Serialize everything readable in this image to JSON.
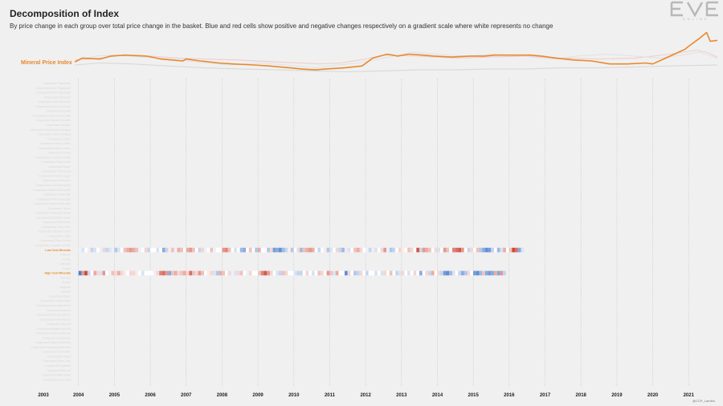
{
  "header": {
    "title": "Decomposition of Index",
    "subtitle": "By price change in each group over total price change in the basket. Blue and red cells show positive and negative changes respectively on a gradient scale where white represents no change"
  },
  "logo": {
    "wordmark": "EVE",
    "tagline": "ONLINE",
    "icon": "eve-online-logo"
  },
  "credit": "@CCP_Larrikin",
  "colors": {
    "background": "#f0f0f0",
    "index_line": "#e8892c",
    "positive": "#3a72c8",
    "negative": "#c8301e",
    "neutral": "#ffffff",
    "grid": "#c4c4c4"
  },
  "chart_data": {
    "type": "heatmap",
    "title": "Decomposition of Index",
    "index_series": {
      "name": "Mineral Price Index",
      "points": [
        [
          2003.9,
          100
        ],
        [
          2004.1,
          104
        ],
        [
          2004.6,
          103
        ],
        [
          2004.9,
          106
        ],
        [
          2005.3,
          107
        ],
        [
          2005.9,
          106
        ],
        [
          2006.3,
          103
        ],
        [
          2006.9,
          101
        ],
        [
          2007.0,
          103
        ],
        [
          2007.4,
          101
        ],
        [
          2007.9,
          99
        ],
        [
          2008.3,
          98
        ],
        [
          2008.9,
          97
        ],
        [
          2009.3,
          96
        ],
        [
          2009.9,
          94
        ],
        [
          2010.2,
          93
        ],
        [
          2010.6,
          92
        ],
        [
          2010.9,
          93
        ],
        [
          2011.4,
          94
        ],
        [
          2011.9,
          96
        ],
        [
          2012.2,
          104
        ],
        [
          2012.6,
          108
        ],
        [
          2012.9,
          106
        ],
        [
          2013.2,
          108
        ],
        [
          2013.6,
          107
        ],
        [
          2013.9,
          106
        ],
        [
          2014.4,
          105
        ],
        [
          2014.9,
          106
        ],
        [
          2015.3,
          106
        ],
        [
          2015.6,
          107
        ],
        [
          2015.9,
          107
        ],
        [
          2016.3,
          107
        ],
        [
          2016.6,
          107
        ],
        [
          2016.9,
          106
        ],
        [
          2017.3,
          104
        ],
        [
          2017.8,
          102
        ],
        [
          2018.3,
          101
        ],
        [
          2018.8,
          98
        ],
        [
          2019.3,
          98
        ],
        [
          2019.8,
          99
        ],
        [
          2020.0,
          98
        ],
        [
          2020.3,
          103
        ],
        [
          2020.6,
          108
        ],
        [
          2020.9,
          113
        ],
        [
          2021.0,
          116
        ],
        [
          2021.3,
          124
        ],
        [
          2021.5,
          130
        ],
        [
          2021.6,
          121
        ],
        [
          2021.8,
          122
        ]
      ]
    },
    "context_series": [
      {
        "color": "#d8d8d8",
        "points": [
          [
            2003.9,
            97
          ],
          [
            2004.6,
            99
          ],
          [
            2005.5,
            98
          ],
          [
            2006.5,
            96
          ],
          [
            2007.5,
            94
          ],
          [
            2008.5,
            93
          ],
          [
            2009.5,
            92
          ],
          [
            2010.5,
            91
          ],
          [
            2011.5,
            90
          ],
          [
            2012.5,
            91
          ],
          [
            2013.5,
            92
          ],
          [
            2014.5,
            92
          ],
          [
            2015.5,
            93
          ],
          [
            2016.5,
            93
          ],
          [
            2017.5,
            94
          ],
          [
            2018.5,
            94
          ],
          [
            2019.5,
            95
          ],
          [
            2020.5,
            96
          ],
          [
            2021.8,
            97
          ]
        ]
      },
      {
        "color": "#f2cccc",
        "points": [
          [
            2003.9,
            102
          ],
          [
            2004.6,
            104
          ],
          [
            2005.2,
            107
          ],
          [
            2006.0,
            106
          ],
          [
            2006.8,
            104
          ],
          [
            2007.5,
            103
          ],
          [
            2008.5,
            102
          ],
          [
            2009.5,
            100
          ],
          [
            2010.2,
            99
          ],
          [
            2010.7,
            98
          ],
          [
            2011.3,
            99
          ],
          [
            2012.0,
            103
          ],
          [
            2012.5,
            107
          ],
          [
            2013.5,
            106
          ],
          [
            2014.5,
            104
          ],
          [
            2015.5,
            105
          ],
          [
            2016.5,
            106
          ],
          [
            2017.5,
            104
          ],
          [
            2018.5,
            103
          ],
          [
            2019.5,
            104
          ],
          [
            2020.5,
            108
          ],
          [
            2021.2,
            112
          ],
          [
            2021.5,
            110
          ],
          [
            2021.8,
            105
          ]
        ]
      },
      {
        "color": "#e2e2e2",
        "points": [
          [
            2003.9,
            101
          ],
          [
            2004.5,
            106
          ],
          [
            2005.0,
            107
          ],
          [
            2005.8,
            105
          ],
          [
            2006.6,
            103
          ],
          [
            2007.3,
            100
          ],
          [
            2008.2,
            97
          ],
          [
            2009.0,
            99
          ],
          [
            2009.8,
            97
          ],
          [
            2010.6,
            94
          ],
          [
            2011.0,
            96
          ],
          [
            2011.8,
            99
          ],
          [
            2012.5,
            104
          ],
          [
            2013.3,
            110
          ],
          [
            2014.0,
            108
          ],
          [
            2014.8,
            106
          ],
          [
            2015.6,
            108
          ],
          [
            2016.4,
            106
          ],
          [
            2017.2,
            103
          ],
          [
            2017.9,
            106
          ],
          [
            2018.7,
            108
          ],
          [
            2019.5,
            106
          ],
          [
            2020.2,
            104
          ],
          [
            2020.8,
            107
          ],
          [
            2021.3,
            110
          ],
          [
            2021.8,
            104
          ]
        ]
      }
    ],
    "rows": [
      {
        "name": "Compressed Plagioclase",
        "highlight": false
      },
      {
        "name": "Compressed Azure Plagioclase",
        "highlight": false
      },
      {
        "name": "Compressed Rich Plagioclase",
        "highlight": false
      },
      {
        "name": "Compressed Pyroxeres",
        "highlight": false
      },
      {
        "name": "Compressed Solid Pyroxeres",
        "highlight": false
      },
      {
        "name": "Compressed Viscous Pyroxeres",
        "highlight": false
      },
      {
        "name": "Compressed Scordite",
        "highlight": false
      },
      {
        "name": "Compressed Condensed Scordite",
        "highlight": false
      },
      {
        "name": "Compressed Massive Scordite",
        "highlight": false
      },
      {
        "name": "Compressed Veldspar",
        "highlight": false
      },
      {
        "name": "Compressed Concentrated Veldspar",
        "highlight": false
      },
      {
        "name": "Compressed Dense Veldspar",
        "highlight": false
      },
      {
        "name": "Compressed Omber",
        "highlight": false
      },
      {
        "name": "Compressed Silvery Omber",
        "highlight": false
      },
      {
        "name": "Compressed Golden Omber",
        "highlight": false
      },
      {
        "name": "Compressed Kernite",
        "highlight": false
      },
      {
        "name": "Compressed Luminous Kernite",
        "highlight": false
      },
      {
        "name": "Compressed Fiery Kernite",
        "highlight": false
      },
      {
        "name": "Compressed Jaspet",
        "highlight": false
      },
      {
        "name": "Compressed Pure Jaspet",
        "highlight": false
      },
      {
        "name": "Compressed Pristine Jaspet",
        "highlight": false
      },
      {
        "name": "Compressed Hemorphite",
        "highlight": false
      },
      {
        "name": "Compressed Vivid Hemorphite",
        "highlight": false
      },
      {
        "name": "Compressed Radiant Hemorphite",
        "highlight": false
      },
      {
        "name": "Compressed Hedbergite",
        "highlight": false
      },
      {
        "name": "Compressed Vitric Hedbergite",
        "highlight": false
      },
      {
        "name": "Compressed Glazed Hedbergite",
        "highlight": false
      },
      {
        "name": "Compressed Gneiss",
        "highlight": false
      },
      {
        "name": "Compressed Iridescent Gneiss",
        "highlight": false
      },
      {
        "name": "Compressed Prismatic Gneiss",
        "highlight": false
      },
      {
        "name": "Compressed Dark Ochre",
        "highlight": false
      },
      {
        "name": "Compressed Onyx Ochre",
        "highlight": false
      },
      {
        "name": "Compressed Obsidian Ochre",
        "highlight": false
      },
      {
        "name": "Compressed Crokite",
        "highlight": false
      },
      {
        "name": "Compressed Sharp Crokite",
        "highlight": false
      },
      {
        "name": "Compressed Crystalline Crokite",
        "highlight": false
      },
      {
        "name": "Low Cost Minerals",
        "highlight": true
      },
      {
        "name": "Tritanium",
        "highlight": false
      },
      {
        "name": "Pyerite",
        "highlight": false
      },
      {
        "name": "Mexallon",
        "highlight": false
      },
      {
        "name": "Isogen",
        "highlight": false
      },
      {
        "name": "High Cost Minerals",
        "highlight": true
      },
      {
        "name": "Nocxium",
        "highlight": false
      },
      {
        "name": "Zydrine",
        "highlight": false
      },
      {
        "name": "Megacyte",
        "highlight": false
      },
      {
        "name": "Morphite",
        "highlight": false
      },
      {
        "name": "Compressed Bistot",
        "highlight": false
      },
      {
        "name": "Compressed Triclinic Bistot",
        "highlight": false
      },
      {
        "name": "Compressed Monoclinic Bistot",
        "highlight": false
      },
      {
        "name": "Compressed Arkonor",
        "highlight": false
      },
      {
        "name": "Compressed Crimson Arkonor",
        "highlight": false
      },
      {
        "name": "Compressed Prime Arkonor",
        "highlight": false
      },
      {
        "name": "Compressed Mercoxit",
        "highlight": false
      },
      {
        "name": "Compressed Magma Mercoxit",
        "highlight": false
      },
      {
        "name": "Compressed Vitreous Mercoxit",
        "highlight": false
      },
      {
        "name": "Compressed Spodumain",
        "highlight": false
      },
      {
        "name": "Compressed Bright Spodumain",
        "highlight": false
      },
      {
        "name": "Compressed Gleaming Spodumain",
        "highlight": false
      },
      {
        "name": "Compressed Dark Glitter",
        "highlight": false
      },
      {
        "name": "Compressed Gelidus",
        "highlight": false
      },
      {
        "name": "Compressed Glare Crust",
        "highlight": false
      },
      {
        "name": "Compressed Krystallos",
        "highlight": false
      },
      {
        "name": "Compressed Blue Ice",
        "highlight": false
      },
      {
        "name": "Compressed White Glaze",
        "highlight": false
      },
      {
        "name": "Compressed Clear Icicle",
        "highlight": false
      }
    ],
    "heat_rows": {
      "Low Cost Minerals": {
        "start": 2004.0,
        "step": 0.0833,
        "values": [
          0.1,
          0.2,
          0,
          -0.1,
          0.3,
          0.2,
          0,
          0.1,
          -0.2,
          0.3,
          0.2,
          0.1,
          0.4,
          0.2,
          0,
          -0.3,
          -0.4,
          -0.5,
          -0.4,
          -0.3,
          0.1,
          0,
          -0.2,
          0.3,
          0,
          0,
          0.2,
          0,
          0.6,
          0.3,
          -0.1,
          -0.3,
          0.1,
          -0.4,
          -0.3,
          0,
          -0.4,
          -0.5,
          -0.3,
          0,
          0.3,
          -0.2,
          0.1,
          0,
          -0.3,
          0.1,
          0,
          0,
          -0.5,
          -0.6,
          -0.3,
          0,
          0.2,
          0,
          0.5,
          0.6,
          0,
          -0.3,
          0,
          0.4,
          -0.4,
          0,
          0,
          0.4,
          -0.2,
          0.7,
          0.6,
          0.8,
          0.5,
          0.3,
          -0.1,
          0.4,
          0,
          -0.2,
          0.5,
          -0.3,
          -0.4,
          -0.5,
          -0.4,
          0,
          0.3,
          0,
          -0.1,
          0.4,
          0.2,
          0,
          -0.2,
          0.3,
          0.5,
          -0.1,
          0.2,
          0,
          -0.3,
          -0.4,
          -0.2,
          0,
          0.1,
          0.3,
          -0.1,
          0.2,
          0,
          -0.2,
          -0.5,
          0.1,
          0.4,
          0.3,
          0,
          -0.2,
          -0.1,
          0,
          -0.3,
          -0.2,
          0,
          -0.8,
          0.3,
          -0.5,
          -0.4,
          -0.3,
          0,
          -0.2,
          0.2,
          0,
          -0.5,
          -0.3,
          0,
          -0.6,
          -0.7,
          -0.8,
          -0.5,
          0,
          0.3,
          -0.2,
          0,
          -0.3,
          0.4,
          0.6,
          0.8,
          0.7,
          0.3,
          0,
          0.5,
          0.2,
          -0.4,
          0,
          -0.3,
          -0.9,
          -0.7,
          0.6,
          0.2
        ]
      },
      "High Cost Minerals": {
        "start": 2004.0,
        "step": 0.0833,
        "values": [
          0.9,
          -0.5,
          -0.9,
          0.3,
          0,
          -0.4,
          -0.2,
          0.2,
          -0.5,
          0,
          0.1,
          -0.3,
          -0.2,
          -0.4,
          -0.2,
          -0.1,
          0,
          -0.2,
          -0.2,
          -0.1,
          0,
          0.2,
          0,
          0,
          0,
          0.1,
          -0.2,
          -0.6,
          -0.7,
          -0.5,
          0.6,
          -0.3,
          -0.4,
          -0.2,
          -0.3,
          -0.4,
          -0.2,
          -0.7,
          -0.3,
          -0.2,
          -0.5,
          -0.3,
          0,
          -0.1,
          -0.2,
          0.2,
          0.4,
          -0.4,
          -0.3,
          0,
          -0.2,
          0.1,
          0.2,
          -0.2,
          -0.3,
          0,
          0.1,
          -0.2,
          0,
          0,
          -0.3,
          -0.6,
          -0.8,
          -0.5,
          -0.2,
          0,
          0.2,
          0.3,
          -0.3,
          -0.2,
          0,
          0,
          0.2,
          0.3,
          0.3,
          0,
          -0.2,
          0,
          0.2,
          0,
          -0.3,
          -0.2,
          0,
          -0.5,
          -0.3,
          0.2,
          -0.4,
          0,
          0,
          0.8,
          -0.2,
          0,
          0.4,
          0.3,
          -0.2,
          0,
          0.3,
          0,
          0,
          0.2,
          0,
          0.2,
          -0.2,
          0,
          -0.3,
          0,
          0.3,
          0.2,
          -0.2,
          0,
          0.2,
          0,
          -0.2,
          0,
          0.6,
          0,
          -0.2,
          0.3,
          -0.4,
          0,
          -0.2,
          0.3,
          0.7,
          0.8,
          0.5,
          0.2,
          0,
          0.3,
          0.6,
          0.4,
          -0.2,
          0,
          0.7,
          0.8,
          0.5,
          -0.3,
          0.6,
          0.7,
          0.6,
          -0.4,
          0.6,
          -0.5,
          0.3
        ]
      }
    },
    "x_axis": {
      "range": [
        2003.0,
        2021.8
      ],
      "ticks": [
        "2003",
        "2004",
        "2005",
        "2006",
        "2007",
        "2008",
        "2009",
        "2010",
        "2011",
        "2012",
        "2013",
        "2014",
        "2015",
        "2016",
        "2017",
        "2018",
        "2019",
        "2020",
        "2021"
      ],
      "grid": "dashed vertical at each year boundary"
    },
    "y_range_index": [
      88,
      132
    ]
  }
}
